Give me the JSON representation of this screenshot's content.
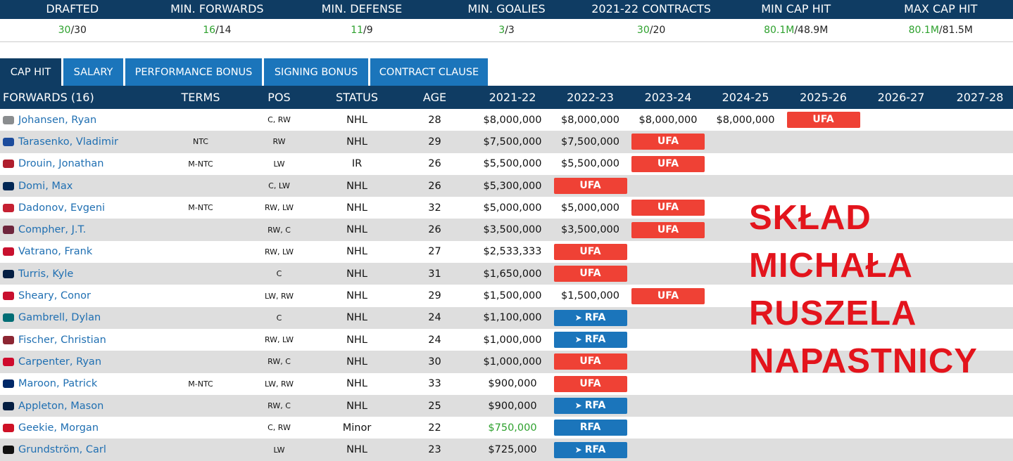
{
  "summary": [
    {
      "label": "DRAFTED",
      "green": "30",
      "rest": "/30"
    },
    {
      "label": "MIN. FORWARDS",
      "green": "16",
      "rest": "/14"
    },
    {
      "label": "MIN. DEFENSE",
      "green": "11",
      "rest": "/9"
    },
    {
      "label": "MIN. GOALIES",
      "green": "3",
      "rest": "/3"
    },
    {
      "label": "2021-22 CONTRACTS",
      "green": "30",
      "rest": "/20"
    },
    {
      "label": "MIN CAP HIT",
      "green": "80.1M",
      "rest": "/48.9M"
    },
    {
      "label": "MAX CAP HIT",
      "green": "80.1M",
      "rest": "/81.5M"
    }
  ],
  "tabs": [
    "CAP HIT",
    "SALARY",
    "PERFORMANCE BONUS",
    "SIGNING BONUS",
    "CONTRACT CLAUSE"
  ],
  "table": {
    "headers": [
      "FORWARDS (16)",
      "TERMS",
      "POS",
      "STATUS",
      "AGE",
      "2021-22",
      "2022-23",
      "2023-24",
      "2024-25",
      "2025-26",
      "2026-27",
      "2027-28"
    ],
    "rows": [
      {
        "logo": "#8a8d8f",
        "name": "Johansen, Ryan",
        "terms": "",
        "pos": "C, RW",
        "status": "NHL",
        "age": "28",
        "years": [
          "$8,000,000",
          "$8,000,000",
          "$8,000,000",
          "$8,000,000",
          "UFA",
          "",
          ""
        ]
      },
      {
        "logo": "#1d4c9c",
        "name": "Tarasenko, Vladimir",
        "terms": "NTC",
        "pos": "RW",
        "status": "NHL",
        "age": "29",
        "years": [
          "$7,500,000",
          "$7,500,000",
          "UFA",
          "",
          "",
          "",
          ""
        ]
      },
      {
        "logo": "#af1e2d",
        "name": "Drouin, Jonathan",
        "terms": "M-NTC",
        "pos": "LW",
        "status": "IR",
        "age": "26",
        "years": [
          "$5,500,000",
          "$5,500,000",
          "UFA",
          "",
          "",
          "",
          ""
        ]
      },
      {
        "logo": "#002654",
        "name": "Domi, Max",
        "terms": "",
        "pos": "C, LW",
        "status": "NHL",
        "age": "26",
        "years": [
          "$5,300,000",
          "UFA",
          "",
          "",
          "",
          "",
          ""
        ]
      },
      {
        "logo": "#c52032",
        "name": "Dadonov, Evgeni",
        "terms": "M-NTC",
        "pos": "RW, LW",
        "status": "NHL",
        "age": "32",
        "years": [
          "$5,000,000",
          "$5,000,000",
          "UFA",
          "",
          "",
          "",
          ""
        ]
      },
      {
        "logo": "#6f263d",
        "name": "Compher, J.T.",
        "terms": "",
        "pos": "RW, C",
        "status": "NHL",
        "age": "26",
        "years": [
          "$3,500,000",
          "$3,500,000",
          "UFA",
          "",
          "",
          "",
          ""
        ]
      },
      {
        "logo": "#c8102e",
        "name": "Vatrano, Frank",
        "terms": "",
        "pos": "RW, LW",
        "status": "NHL",
        "age": "27",
        "years": [
          "$2,533,333",
          "UFA",
          "",
          "",
          "",
          "",
          ""
        ]
      },
      {
        "logo": "#041e42",
        "name": "Turris, Kyle",
        "terms": "",
        "pos": "C",
        "status": "NHL",
        "age": "31",
        "years": [
          "$1,650,000",
          "UFA",
          "",
          "",
          "",
          "",
          ""
        ]
      },
      {
        "logo": "#c8102e",
        "name": "Sheary, Conor",
        "terms": "",
        "pos": "LW, RW",
        "status": "NHL",
        "age": "29",
        "years": [
          "$1,500,000",
          "$1,500,000",
          "UFA",
          "",
          "",
          "",
          ""
        ]
      },
      {
        "logo": "#006d75",
        "name": "Gambrell, Dylan",
        "terms": "",
        "pos": "C",
        "status": "NHL",
        "age": "24",
        "years": [
          "$1,100,000",
          "RFA",
          "",
          "",
          "",
          "",
          ""
        ]
      },
      {
        "logo": "#8c2633",
        "name": "Fischer, Christian",
        "terms": "",
        "pos": "RW, LW",
        "status": "NHL",
        "age": "24",
        "years": [
          "$1,000,000",
          "RFA",
          "",
          "",
          "",
          "",
          ""
        ]
      },
      {
        "logo": "#cf0a2c",
        "name": "Carpenter, Ryan",
        "terms": "",
        "pos": "RW, C",
        "status": "NHL",
        "age": "30",
        "years": [
          "$1,000,000",
          "UFA",
          "",
          "",
          "",
          "",
          ""
        ]
      },
      {
        "logo": "#002868",
        "name": "Maroon, Patrick",
        "terms": "M-NTC",
        "pos": "LW, RW",
        "status": "NHL",
        "age": "33",
        "years": [
          "$900,000",
          "UFA",
          "",
          "",
          "",
          "",
          ""
        ]
      },
      {
        "logo": "#041e42",
        "name": "Appleton, Mason",
        "terms": "",
        "pos": "RW, C",
        "status": "NHL",
        "age": "25",
        "years": [
          "$900,000",
          "RFA",
          "",
          "",
          "",
          "",
          ""
        ]
      },
      {
        "logo": "#ce1126",
        "name": "Geekie, Morgan",
        "terms": "",
        "pos": "C, RW",
        "status": "Minor",
        "age": "22",
        "years": [
          "$750,000",
          "RFA",
          "",
          "",
          "",
          "",
          ""
        ],
        "green": true,
        "plainRfa": true
      },
      {
        "logo": "#111111",
        "name": "Grundström, Carl",
        "terms": "",
        "pos": "LW",
        "status": "NHL",
        "age": "23",
        "years": [
          "$725,000",
          "RFA",
          "",
          "",
          "",
          "",
          ""
        ]
      }
    ]
  },
  "overlay": {
    "lines": [
      "SKŁAD",
      "MICHAŁA",
      "RUSZELA",
      "NAPASTNICY"
    ]
  }
}
